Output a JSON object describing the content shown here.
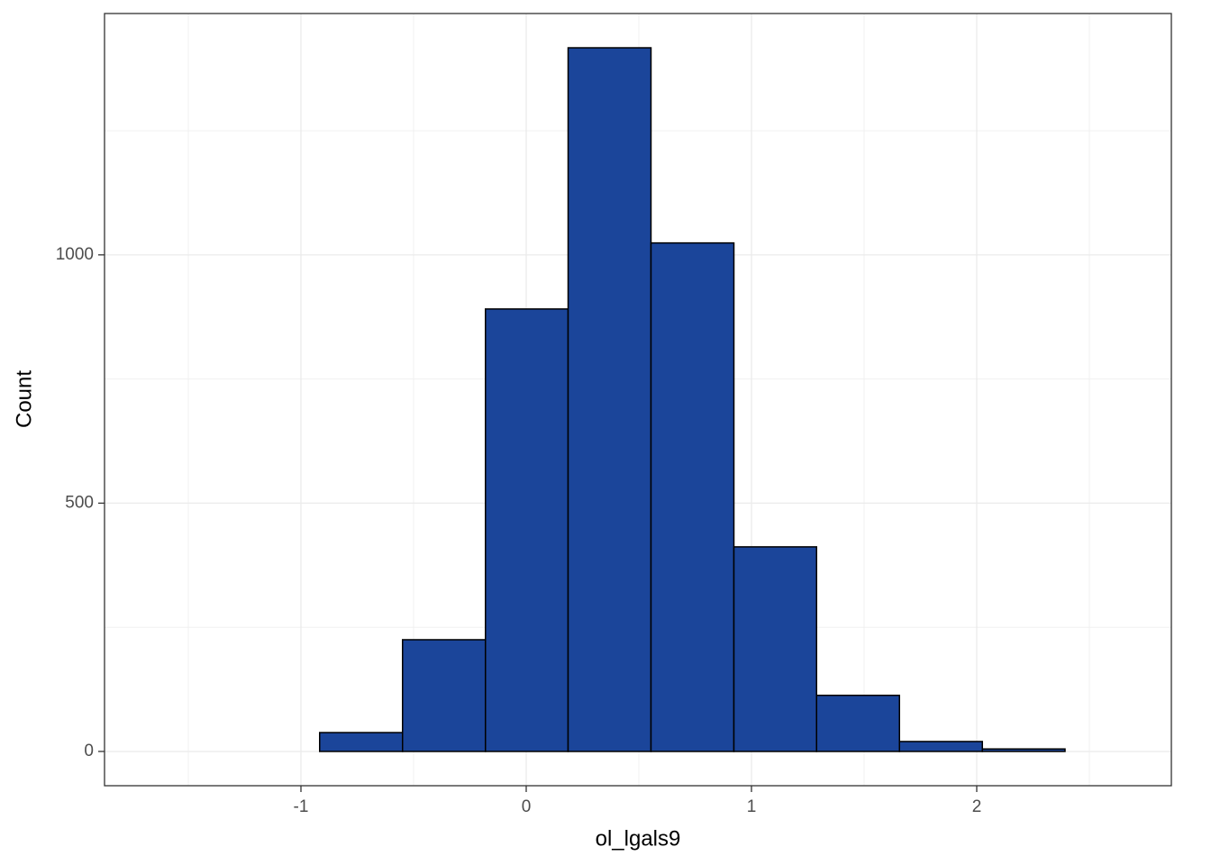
{
  "chart_data": {
    "type": "histogram",
    "x_label": "ol_lgals9",
    "y_label": "Count",
    "bins": [
      -1.652,
      -1.284,
      -0.917,
      -0.549,
      -0.181,
      0.186,
      0.554,
      0.922,
      1.289,
      1.657,
      2.025,
      2.392,
      2.76
    ],
    "values": [
      0,
      0,
      38,
      225,
      891,
      1417,
      1024,
      412,
      113,
      20,
      5,
      0
    ],
    "color": "#1b459a",
    "edge_color": "#000000",
    "xlim": [
      -1.872,
      2.864
    ],
    "ylim": [
      -69,
      1486
    ],
    "xticks": [
      -1,
      0,
      1,
      2
    ],
    "yticks": [
      0,
      500,
      1000
    ],
    "x_minor_grid": [
      -1.5,
      -0.5,
      0.5,
      1.5,
      2.5
    ],
    "y_minor_grid": [
      250,
      750,
      1250
    ],
    "grid": true
  }
}
